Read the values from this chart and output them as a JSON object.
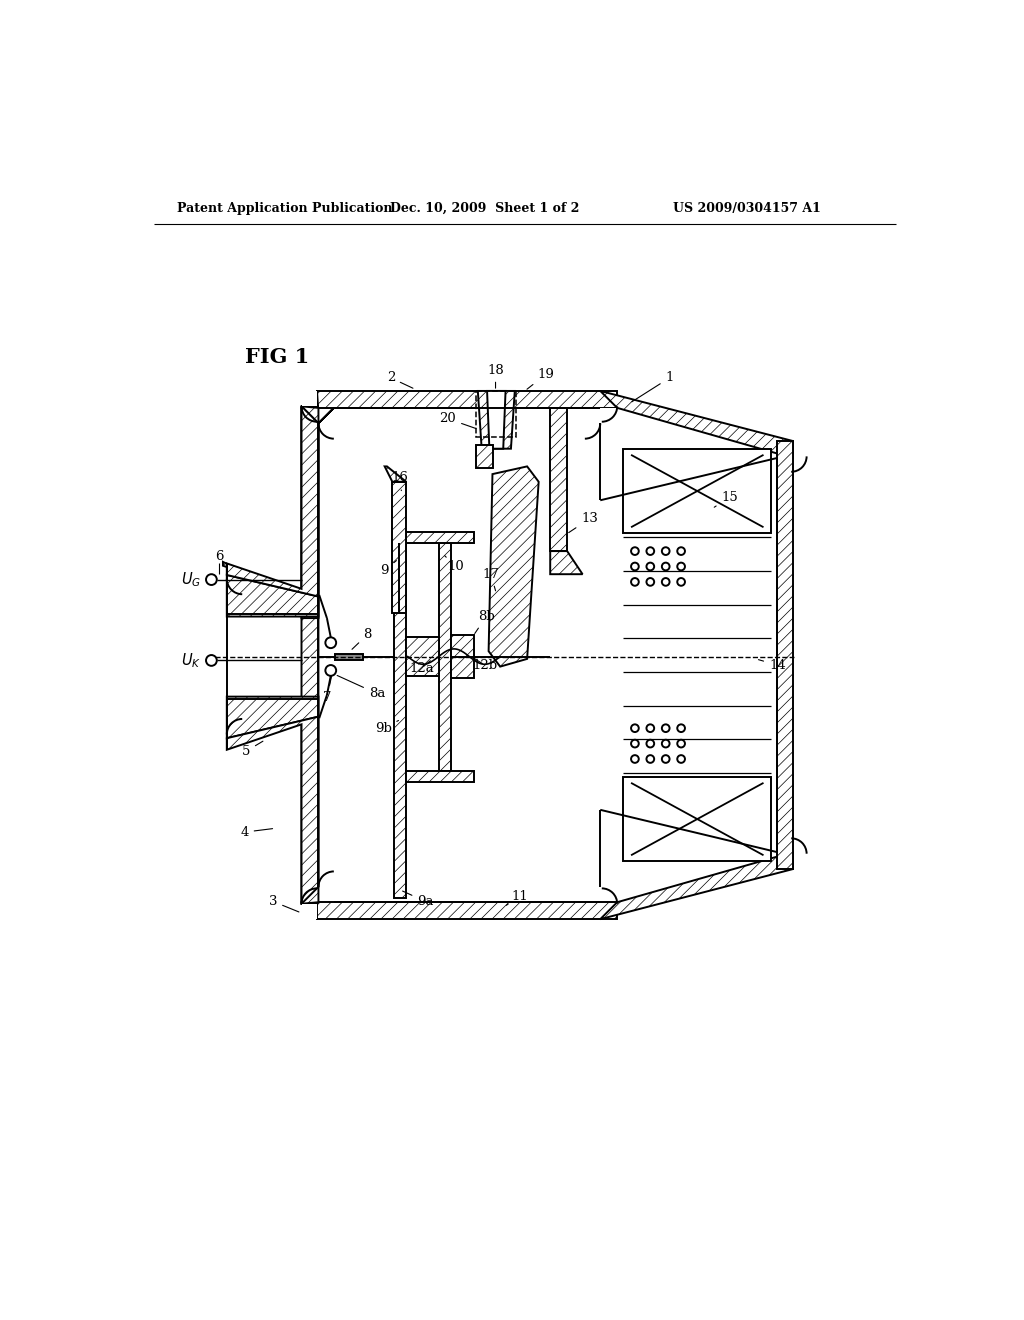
{
  "header_left": "Patent Application Publication",
  "header_mid": "Dec. 10, 2009  Sheet 1 of 2",
  "header_right": "US 2009/0304157 A1",
  "fig_label": "FIG 1",
  "bg_color": "#ffffff"
}
